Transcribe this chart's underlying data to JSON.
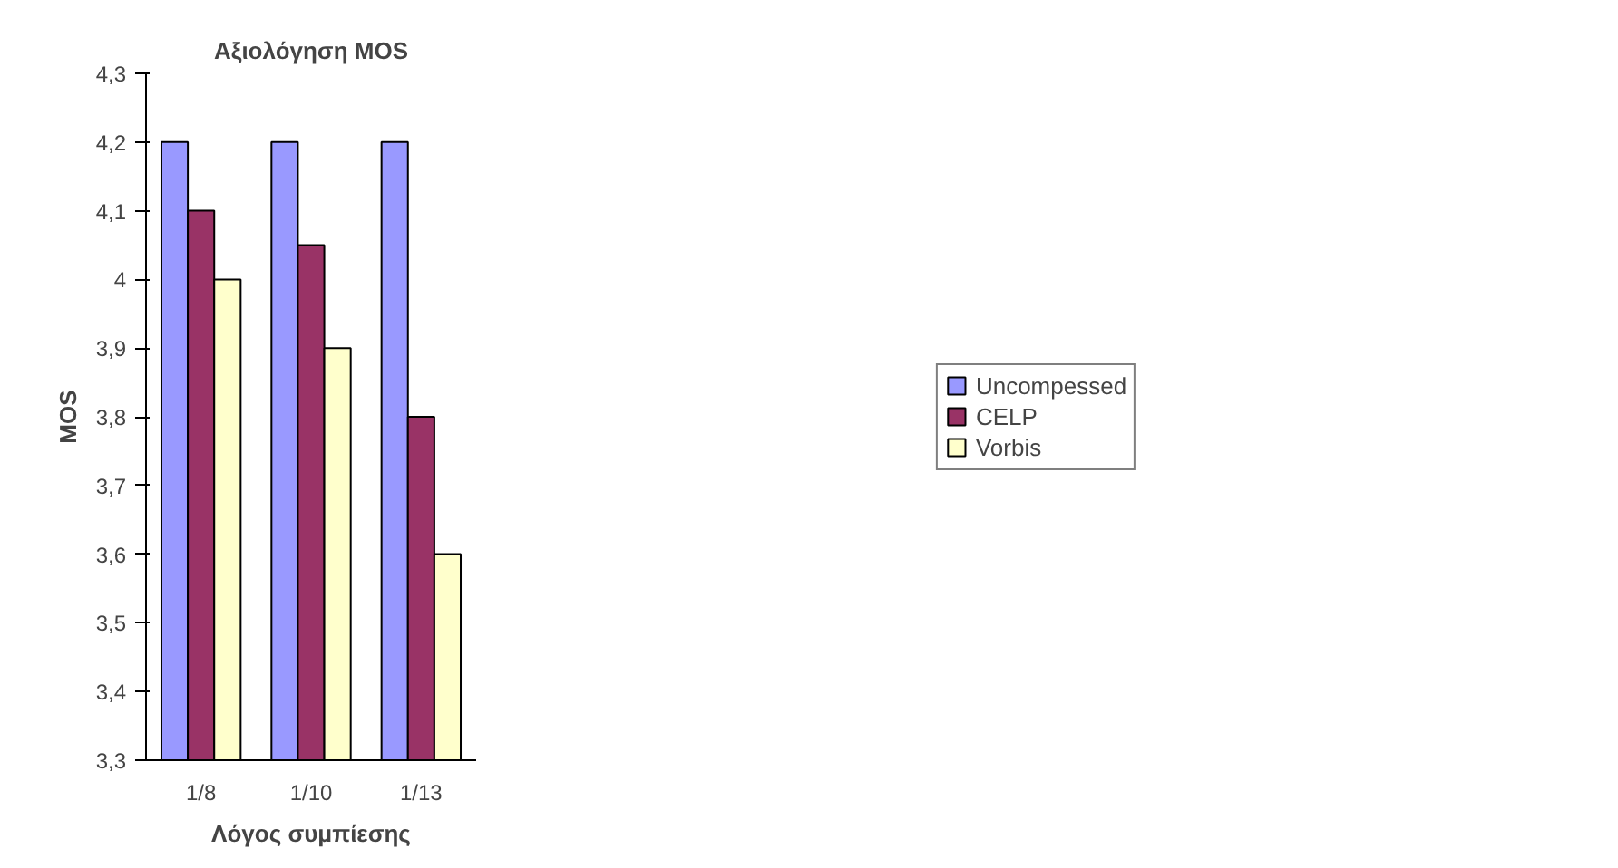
{
  "chart_data": {
    "type": "bar",
    "title": "Αξιολόγηση MOS",
    "xlabel": "Λόγος συμπίεσης",
    "ylabel": "MOS",
    "categories": [
      "1/8",
      "1/10",
      "1/13"
    ],
    "series": [
      {
        "name": "Uncompessed",
        "color": "#9999ff",
        "values": [
          4.2,
          4.2,
          4.2
        ]
      },
      {
        "name": "CELP",
        "color": "#993366",
        "values": [
          4.1,
          4.05,
          3.8
        ]
      },
      {
        "name": "Vorbis",
        "color": "#ffffcc",
        "values": [
          4.0,
          3.9,
          3.6
        ]
      }
    ],
    "ylim": [
      3.3,
      4.3
    ],
    "yticks": [
      {
        "value": 3.3,
        "label": "3,3"
      },
      {
        "value": 3.4,
        "label": "3,4"
      },
      {
        "value": 3.5,
        "label": "3,5"
      },
      {
        "value": 3.6,
        "label": "3,6"
      },
      {
        "value": 3.7,
        "label": "3,7"
      },
      {
        "value": 3.8,
        "label": "3,8"
      },
      {
        "value": 3.9,
        "label": "3,9"
      },
      {
        "value": 4,
        "label": "4"
      },
      {
        "value": 4.1,
        "label": "4,1"
      },
      {
        "value": 4.2,
        "label": "4,2"
      },
      {
        "value": 4.3,
        "label": "4,3"
      }
    ],
    "grid": false,
    "legend": "right"
  }
}
